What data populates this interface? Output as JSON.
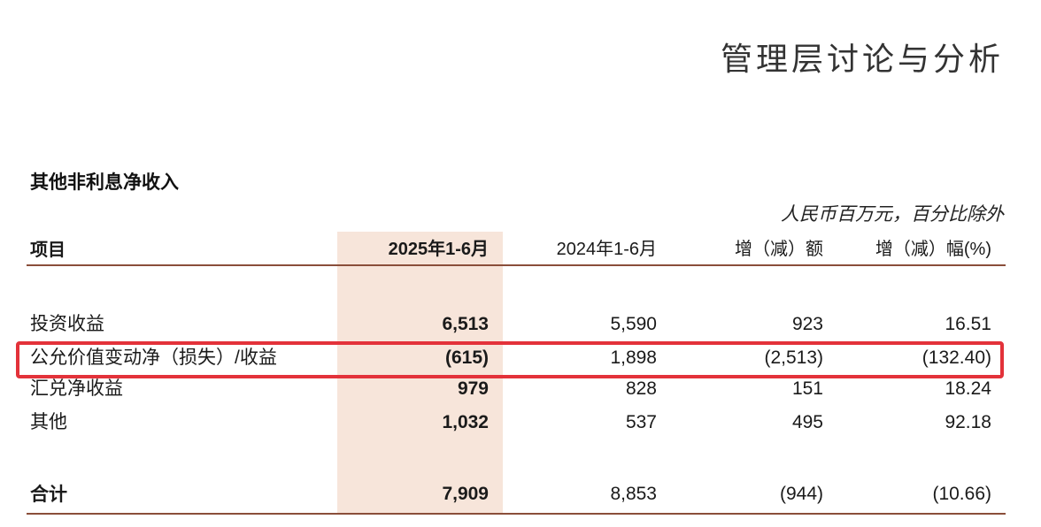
{
  "header": {
    "title": "管理层讨论与分析"
  },
  "section": {
    "title": "其他非利息净收入",
    "unit_note": "人民币百万元，百分比除外"
  },
  "table": {
    "columns": {
      "label": "项目",
      "y2025": "2025年1-6月",
      "y2024": "2024年1-6月",
      "change": "增（减）额",
      "pct": "增（减）幅(%)"
    },
    "rows": [
      {
        "label": "投资收益",
        "y2025": "6,513",
        "y2024": "5,590",
        "change": "923",
        "pct": "16.51"
      },
      {
        "label": "公允价值变动净（损失）/收益",
        "y2025": "(615)",
        "y2024": "1,898",
        "change": "(2,513)",
        "pct": "(132.40)"
      },
      {
        "label": "汇兑净收益",
        "y2025": "979",
        "y2024": "828",
        "change": "151",
        "pct": "18.24"
      },
      {
        "label": "其他",
        "y2025": "1,032",
        "y2024": "537",
        "change": "495",
        "pct": "92.18"
      }
    ],
    "total": {
      "label": "合计",
      "y2025": "7,909",
      "y2024": "8,853",
      "change": "(944)",
      "pct": "(10.66)"
    }
  },
  "colors": {
    "highlight_column": "#f7e5da",
    "rule": "#8a4e3a",
    "annotation_box": "#e3323a"
  }
}
